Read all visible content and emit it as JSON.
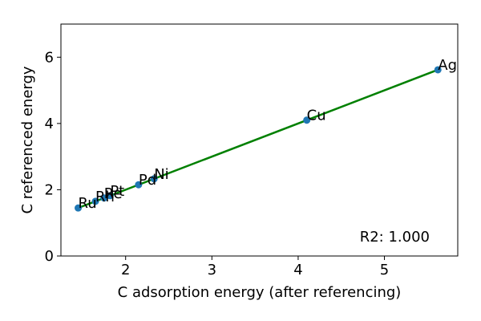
{
  "chart_data": {
    "type": "scatter",
    "title": "",
    "xlabel": "C adsorption energy (after referencing)",
    "ylabel": "C referenced energy",
    "xlim": [
      1.25,
      5.85
    ],
    "ylim": [
      0,
      7
    ],
    "xticks": [
      2,
      3,
      4,
      5
    ],
    "yticks": [
      0,
      2,
      4,
      6
    ],
    "grid": false,
    "points": [
      {
        "label": "Ru",
        "x": 1.45,
        "y": 1.45
      },
      {
        "label": "Rh",
        "x": 1.65,
        "y": 1.65
      },
      {
        "label": "Re",
        "x": 1.75,
        "y": 1.75
      },
      {
        "label": "Pt",
        "x": 1.82,
        "y": 1.82
      },
      {
        "label": "Pd",
        "x": 2.15,
        "y": 2.15
      },
      {
        "label": "Ni",
        "x": 2.33,
        "y": 2.33
      },
      {
        "label": "Cu",
        "x": 4.1,
        "y": 4.1
      },
      {
        "label": "Ag",
        "x": 5.62,
        "y": 5.62
      }
    ],
    "fit_line": {
      "x": [
        1.45,
        5.62
      ],
      "y": [
        1.45,
        5.62
      ],
      "color": "#008000"
    },
    "annotation": "R2: 1.000",
    "colors": {
      "points": "#1f77b4",
      "line": "#008000",
      "axes": "#000000"
    }
  }
}
